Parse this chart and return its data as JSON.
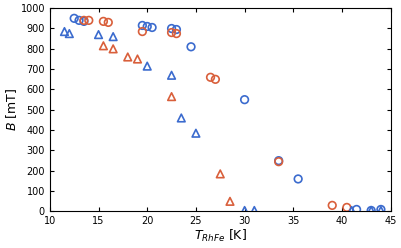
{
  "blue_circles_x": [
    12.5,
    13.0,
    13.5,
    19.5,
    20.0,
    20.5,
    22.5,
    23.0,
    24.5,
    30.0,
    33.5,
    35.5,
    41.5,
    43.0,
    44.0
  ],
  "blue_circles_y": [
    950,
    940,
    935,
    915,
    910,
    905,
    900,
    895,
    810,
    550,
    250,
    160,
    10,
    5,
    10
  ],
  "red_circles_x": [
    13.5,
    14.0,
    15.5,
    16.0,
    19.5,
    22.5,
    23.0,
    26.5,
    27.0,
    33.5,
    39.0,
    40.5
  ],
  "red_circles_y": [
    940,
    940,
    935,
    930,
    885,
    880,
    875,
    660,
    650,
    245,
    30,
    20
  ],
  "blue_triangles_x": [
    11.5,
    12.0,
    15.0,
    16.5,
    20.0,
    22.5,
    23.5,
    25.0,
    30.0,
    31.0,
    41.0,
    43.0,
    44.0
  ],
  "blue_triangles_y": [
    885,
    875,
    870,
    860,
    715,
    670,
    460,
    385,
    5,
    5,
    5,
    5,
    5
  ],
  "red_triangles_x": [
    15.5,
    16.5,
    18.0,
    19.0,
    22.5,
    27.5,
    28.5
  ],
  "red_triangles_y": [
    815,
    800,
    760,
    750,
    565,
    185,
    50
  ],
  "blue_color": "#3b6bce",
  "red_color": "#d95f3b",
  "xlabel": "$T_{RhFe}$ [K]",
  "ylabel": "$B$ [mT]",
  "xlim": [
    10,
    45
  ],
  "ylim": [
    0,
    1000
  ],
  "xticks": [
    10,
    15,
    20,
    25,
    30,
    35,
    40,
    45
  ],
  "yticks": [
    0,
    100,
    200,
    300,
    400,
    500,
    600,
    700,
    800,
    900,
    1000
  ],
  "figsize": [
    4.01,
    2.48
  ],
  "dpi": 100,
  "marker_size": 30,
  "linewidth": 1.2,
  "tick_labelsize": 7,
  "label_fontsize": 9
}
